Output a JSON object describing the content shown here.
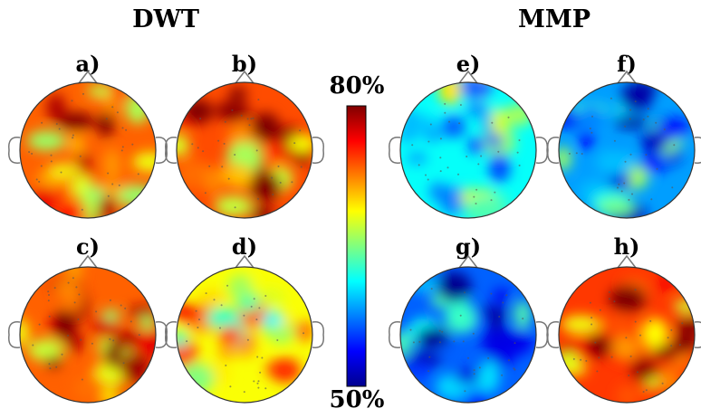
{
  "groups": [
    {
      "id": "dwt",
      "title": "DWT"
    },
    {
      "id": "mmp",
      "title": "MMP"
    }
  ],
  "panels": [
    {
      "id": "a",
      "label": "a)",
      "group": "dwt",
      "level": 0.78
    },
    {
      "id": "b",
      "label": "b)",
      "group": "dwt",
      "level": 0.8
    },
    {
      "id": "c",
      "label": "c)",
      "group": "dwt",
      "level": 0.78
    },
    {
      "id": "d",
      "label": "d)",
      "group": "dwt",
      "level": 0.62
    },
    {
      "id": "e",
      "label": "e)",
      "group": "mmp",
      "level": 0.38
    },
    {
      "id": "f",
      "label": "f)",
      "group": "mmp",
      "level": 0.28
    },
    {
      "id": "g",
      "label": "g)",
      "group": "mmp",
      "level": 0.22
    },
    {
      "id": "h",
      "label": "h)",
      "group": "mmp",
      "level": 0.82
    }
  ],
  "colorbar": {
    "max_label": "80%",
    "min_label": "50%",
    "max_value": 80,
    "min_value": 50,
    "colormap": "jet",
    "stops": [
      "#00008f",
      "#0000ff",
      "#00ffff",
      "#ffff00",
      "#ff0000",
      "#800000"
    ]
  }
}
